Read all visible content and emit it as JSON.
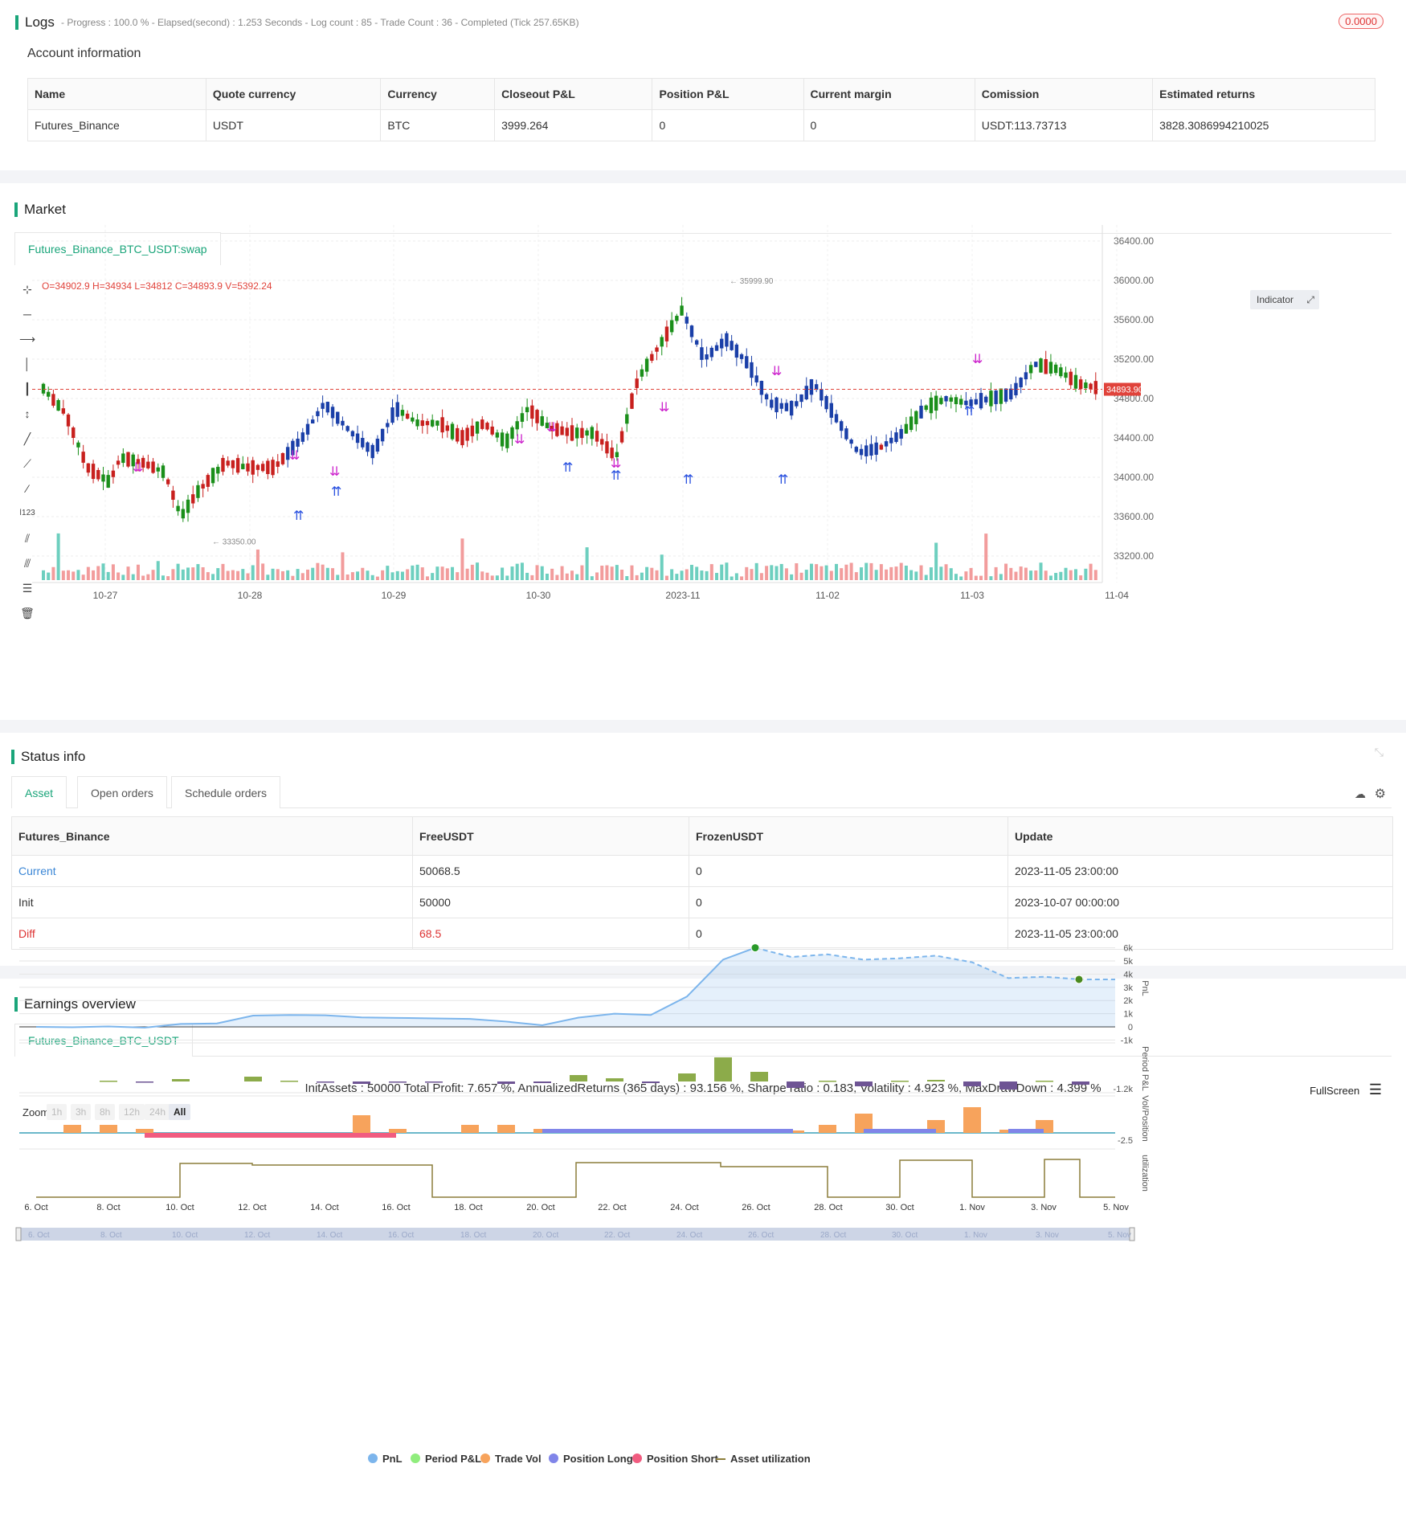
{
  "logs": {
    "title": "Logs",
    "summary": "- Progress : 100.0 % - Elapsed(second) : 1.253  Seconds - Log count : 85 - Trade Count : 36 - Completed (Tick 257.65KB)",
    "badge": "0.0000"
  },
  "account": {
    "title": "Account information",
    "headers": [
      "Name",
      "Quote currency",
      "Currency",
      "Closeout P&L",
      "Position P&L",
      "Current margin",
      "Comission",
      "Estimated returns"
    ],
    "row": [
      "Futures_Binance",
      "USDT",
      "BTC",
      "3999.264",
      "0",
      "0",
      "USDT:113.73713",
      "3828.3086994210025"
    ]
  },
  "market": {
    "title": "Market",
    "tab": "Futures_Binance_BTC_USDT:swap",
    "ohlc": "O=34902.9 H=34934 L=34812 C=34893.9 V=5392.24",
    "indicator_button": "Indicator",
    "price_labels": [
      "36400.00",
      "36000.00",
      "35600.00",
      "35200.00",
      "34800.00",
      "34400.00",
      "34000.00",
      "33600.00",
      "33200.00"
    ],
    "current_price": "34893.90",
    "high_mark": "35999.90",
    "low_mark": "33350.00",
    "x_labels": [
      "10-27",
      "10-28",
      "10-29",
      "10-30",
      "2023-11",
      "11-02",
      "11-03",
      "11-04"
    ],
    "colors": {
      "up": "#1a8f1a",
      "down": "#c8201e",
      "blue": "#1a3fa8",
      "vol_up": "#6dcfbf",
      "vol_down": "#f29c9c",
      "signal": "#cc22cc",
      "long": "#2b52e0"
    }
  },
  "status": {
    "title": "Status info",
    "tabs": [
      "Asset",
      "Open orders",
      "Schedule orders"
    ],
    "headers": [
      "Futures_Binance",
      "FreeUSDT",
      "FrozenUSDT",
      "Update"
    ],
    "rows": [
      {
        "name": "Current",
        "free": "50068.5",
        "frozen": "0",
        "update": "2023-11-05 23:00:00"
      },
      {
        "name": "Init",
        "free": "50000",
        "frozen": "0",
        "update": "2023-10-07 00:00:00"
      },
      {
        "name": "Diff",
        "free": "68.5",
        "frozen": "0",
        "update": "2023-11-05 23:00:00"
      }
    ]
  },
  "earnings": {
    "title": "Earnings overview",
    "tab": "Futures_Binance_BTC_USDT",
    "summary": "InitAssets : 50000 Total Profit: 7.657 %, AnnualizedReturns (365 days) : 93.156 %, Sharpe ratio : 0.183, Volatility : 4.923 %, MaxDrawDown : 4.399 %",
    "fullscreen": "FullScreen",
    "zoom_label": "Zoom",
    "zoom_options": [
      "1h",
      "3h",
      "8h",
      "12h",
      "24h",
      "All"
    ],
    "pnl_axis": [
      "6k",
      "5k",
      "4k",
      "3k",
      "2k",
      "1k",
      "0",
      "-1k"
    ],
    "period_axis": "-1.2k",
    "vol_axis": "-2.5",
    "axis_titles": [
      "PnL",
      "Period P&L",
      "Vol/Position",
      "utilization"
    ],
    "x_labels": [
      "6. Oct",
      "8. Oct",
      "10. Oct",
      "12. Oct",
      "14. Oct",
      "16. Oct",
      "18. Oct",
      "20. Oct",
      "22. Oct",
      "24. Oct",
      "26. Oct",
      "28. Oct",
      "30. Oct",
      "1. Nov",
      "3. Nov",
      "5. Nov"
    ],
    "legend": [
      {
        "label": "PnL",
        "color": "#7cb5ec"
      },
      {
        "label": "Period P&L",
        "color": "#90ed7d"
      },
      {
        "label": "Trade Vol",
        "color": "#f7a35c"
      },
      {
        "label": "Position Long",
        "color": "#8085e9"
      },
      {
        "label": "Position Short",
        "color": "#f15c80"
      },
      {
        "label": "Asset utilization",
        "color": "#8b7d3a"
      }
    ]
  }
}
